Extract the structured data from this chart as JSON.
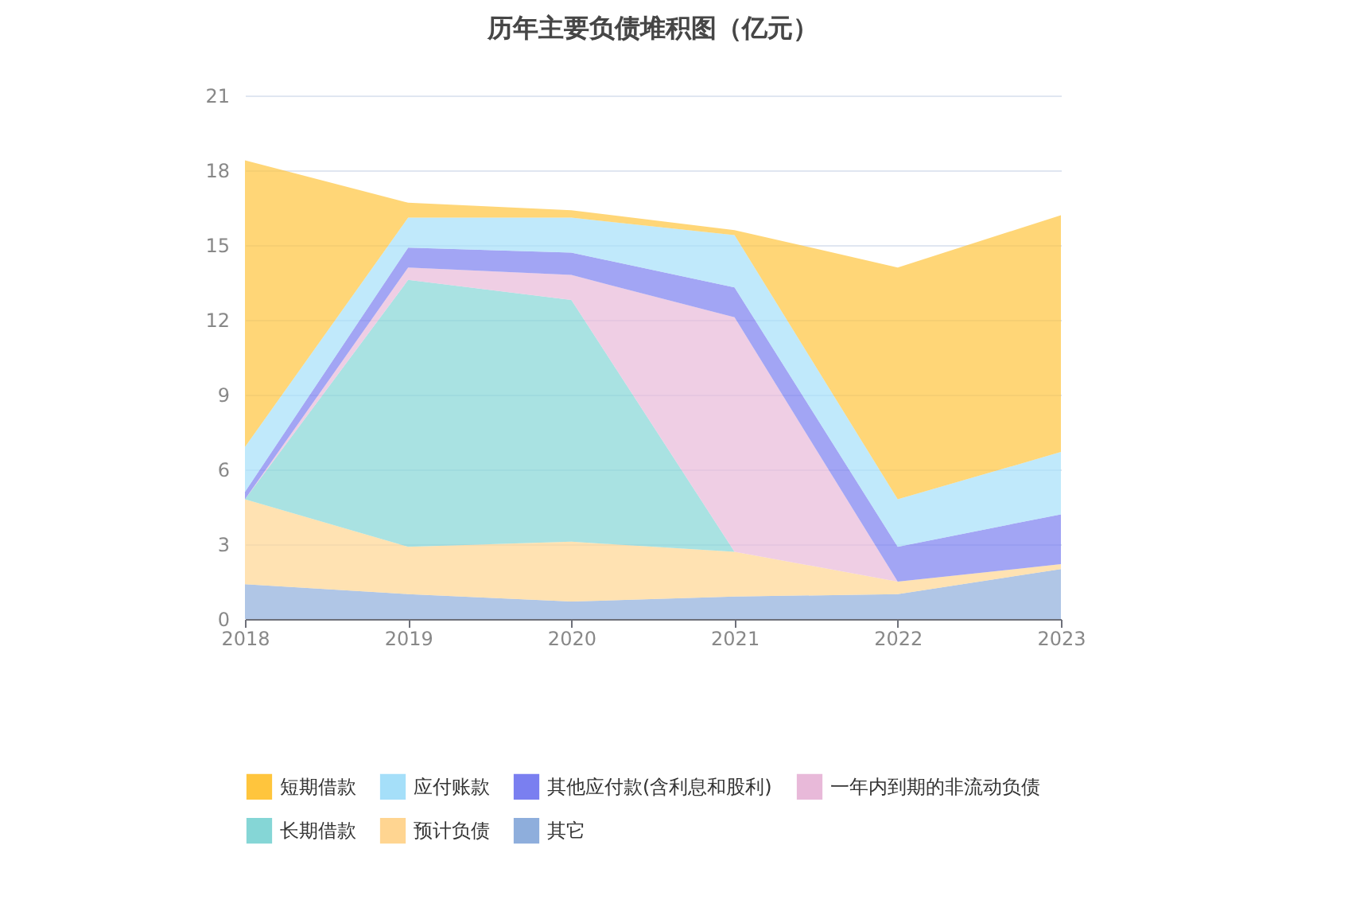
{
  "chart_data": {
    "type": "area",
    "title": "历年主要负债堆积图（亿元）",
    "stacked": true,
    "x": [
      2018,
      2019,
      2020,
      2021,
      2022,
      2023
    ],
    "xlim": [
      2018,
      2023
    ],
    "xticks": [
      2018,
      2019,
      2020,
      2021,
      2022,
      2023
    ],
    "ylim": [
      0,
      21
    ],
    "yticks": [
      0,
      3,
      6,
      9,
      12,
      15,
      18,
      21
    ],
    "grid": "y",
    "legend": "bottom",
    "series": [
      {
        "name": "其它",
        "color": "#8eaedc",
        "values": [
          1.4,
          1.0,
          0.7,
          0.9,
          1.0,
          2.0
        ]
      },
      {
        "name": "预计负债",
        "color": "#ffd591",
        "values": [
          3.4,
          1.9,
          2.4,
          1.8,
          0.5,
          0.2
        ]
      },
      {
        "name": "长期借款",
        "color": "#85d6d6",
        "values": [
          0,
          10.7,
          9.7,
          0,
          0,
          0
        ]
      },
      {
        "name": "一年内到期的非流动负债",
        "color": "#e8b9d9",
        "values": [
          0,
          0.5,
          1.0,
          9.4,
          0,
          0
        ]
      },
      {
        "name": "其他应付款(含利息和股利)",
        "color": "#7a7ff0",
        "values": [
          0.3,
          0.8,
          0.9,
          1.2,
          1.4,
          2.0
        ]
      },
      {
        "name": "应付账款",
        "color": "#a5dff9",
        "values": [
          1.8,
          1.2,
          1.4,
          2.1,
          1.9,
          2.5
        ]
      },
      {
        "name": "短期借款",
        "color": "#ffc53d",
        "values": [
          11.5,
          0.6,
          0.3,
          0.2,
          9.3,
          9.5
        ]
      }
    ]
  }
}
